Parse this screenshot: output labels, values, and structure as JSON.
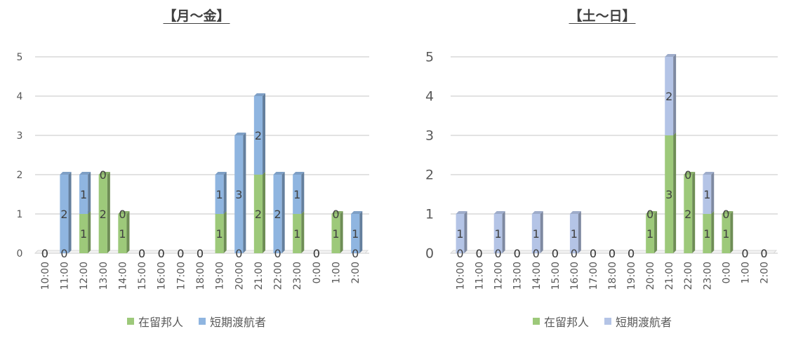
{
  "chart_data": [
    {
      "type": "bar",
      "stacked": true,
      "title": "【月～金】",
      "categories": [
        "10:00",
        "11:00",
        "12:00",
        "13:00",
        "14:00",
        "15:00",
        "16:00",
        "17:00",
        "18:00",
        "19:00",
        "20:00",
        "21:00",
        "22:00",
        "23:00",
        "0:00",
        "1:00",
        "2:00"
      ],
      "series": [
        {
          "name": "在留邦人",
          "color": "#9dc97a",
          "values": [
            0,
            0,
            1,
            2,
            1,
            0,
            0,
            0,
            0,
            1,
            0,
            2,
            0,
            1,
            0,
            1,
            0
          ]
        },
        {
          "name": "短期渡航者",
          "color": "#8fb5e0",
          "values": [
            0,
            2,
            1,
            0,
            0,
            0,
            0,
            0,
            0,
            1,
            3,
            2,
            2,
            1,
            0,
            0,
            1
          ]
        }
      ],
      "ylim": [
        0,
        5
      ],
      "yticks": [
        "0",
        "1",
        "2",
        "3",
        "4",
        "5"
      ],
      "grid": true,
      "legend": "bottom"
    },
    {
      "type": "bar",
      "stacked": true,
      "title": "【土～日】",
      "categories": [
        "10:00",
        "11:00",
        "12:00",
        "13:00",
        "14:00",
        "15:00",
        "16:00",
        "17:00",
        "18:00",
        "19:00",
        "20:00",
        "21:00",
        "22:00",
        "23:00",
        "0:00",
        "1:00",
        "2:00"
      ],
      "series": [
        {
          "name": "在留邦人",
          "color": "#9dc97a",
          "values": [
            0,
            0,
            0,
            0,
            0,
            0,
            0,
            0,
            0,
            0,
            1,
            3,
            2,
            1,
            1,
            0,
            0
          ]
        },
        {
          "name": "短期渡航者",
          "color": "#b4c4e6",
          "values": [
            1,
            0,
            1,
            0,
            1,
            0,
            1,
            0,
            0,
            0,
            0,
            2,
            0,
            1,
            0,
            0,
            0
          ]
        }
      ],
      "ylim": [
        0,
        5
      ],
      "yticks": [
        "0",
        "1",
        "2",
        "3",
        "4",
        "5"
      ],
      "grid": true,
      "legend": "bottom"
    }
  ]
}
